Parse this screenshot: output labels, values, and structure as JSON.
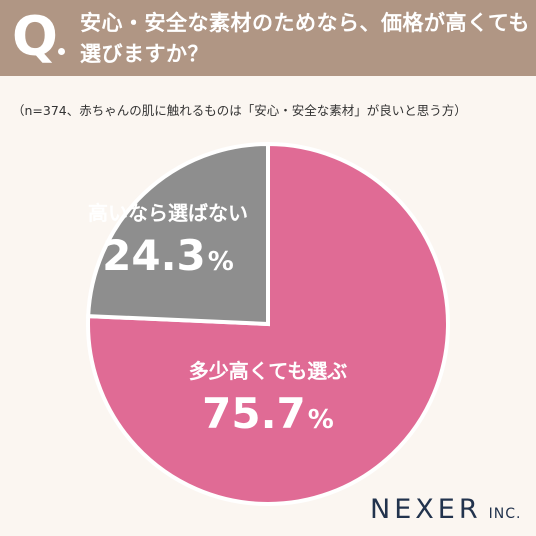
{
  "header": {
    "q_label": "Q",
    "question_lines": [
      "安心・安全な素材のためなら、価格が高くても",
      "選びますか？"
    ]
  },
  "note": "（n=374、赤ちゃんの肌に触れるものは「安心・安全な素材」が良いと思う方）",
  "colors": {
    "header_bg": "#b09684",
    "pink": "#e06b95",
    "gray": "#8e8e8e",
    "background": "#fbf6f1"
  },
  "chart_data": {
    "type": "pie",
    "slices": [
      {
        "label": "多少高くても選ぶ",
        "value": 75.7,
        "value_text": "75.7",
        "unit": "%",
        "color": "#e06b95"
      },
      {
        "label": "高いなら選ばない",
        "value": 24.3,
        "value_text": "24.3",
        "unit": "%",
        "color": "#8e8e8e"
      }
    ],
    "start": "12 o'clock",
    "direction": "clockwise"
  },
  "brand": {
    "main": "NEXER",
    "sub": "INC."
  }
}
